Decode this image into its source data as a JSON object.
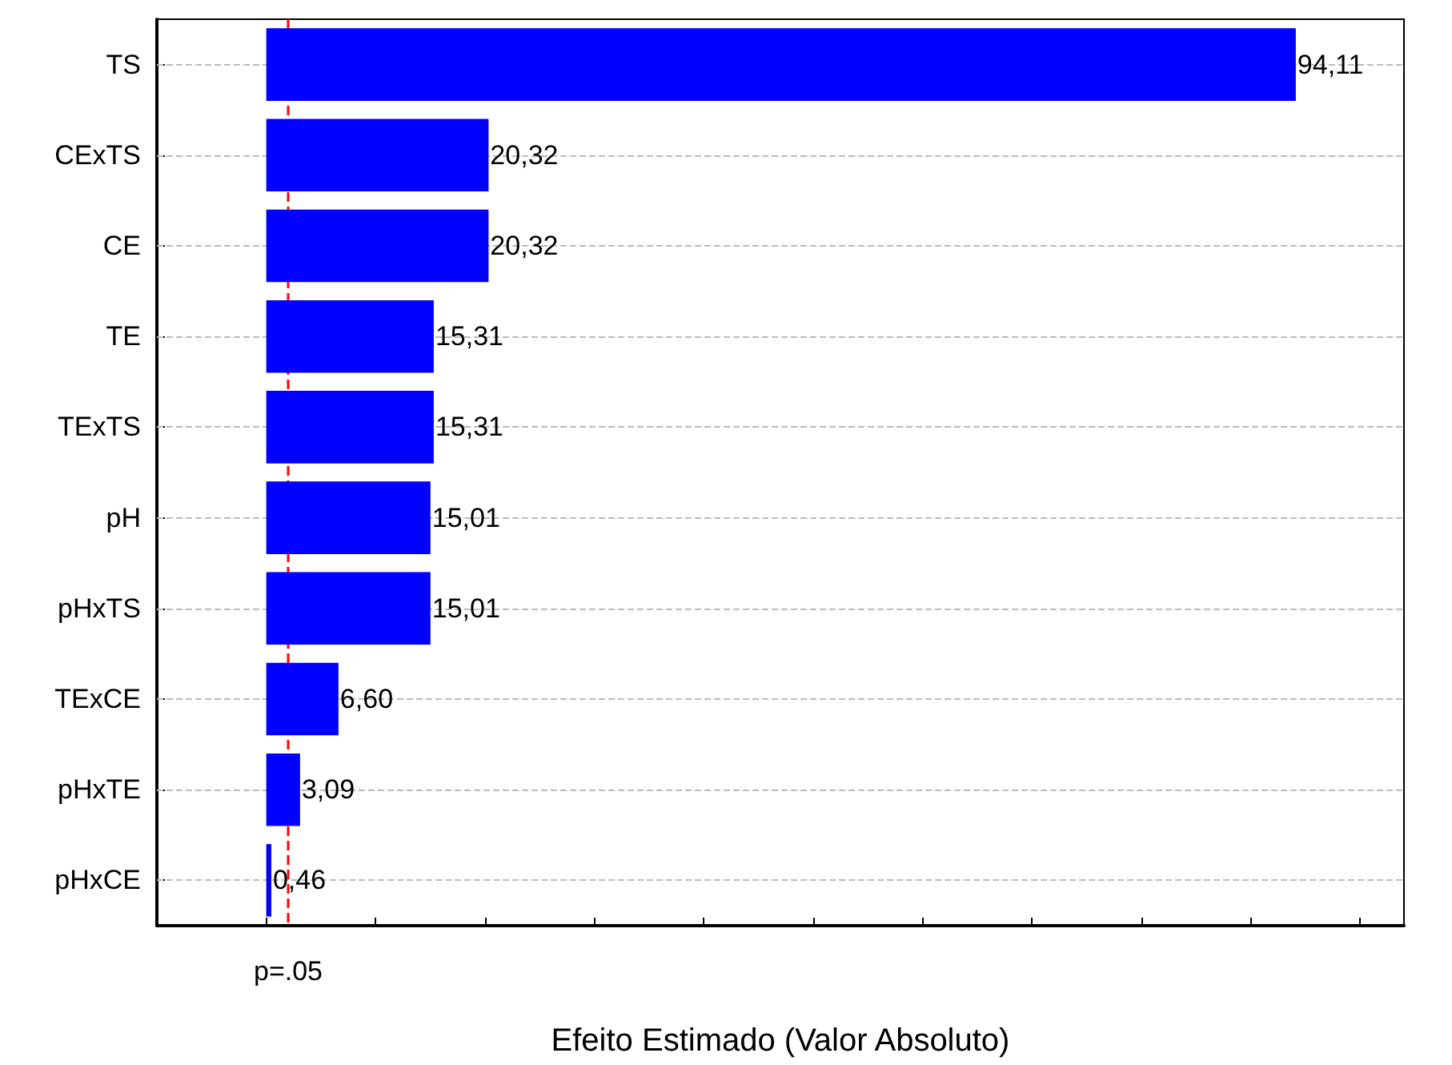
{
  "chart_data": {
    "type": "bar",
    "orientation": "horizontal",
    "xlabel": "Efeito Estimado (Valor Absoluto)",
    "categories": [
      "TS",
      "CExTS",
      "CE",
      "TE",
      "TExTS",
      "pH",
      "pHxTS",
      "TExCE",
      "pHxTE",
      "pHxCE"
    ],
    "values": [
      94.11,
      20.32,
      20.32,
      15.31,
      15.31,
      15.01,
      15.01,
      6.6,
      3.09,
      0.46
    ],
    "value_labels": [
      "94,11",
      "20,32",
      "20,32",
      "15,31",
      "15,31",
      "15,01",
      "15,01",
      "6,60",
      "3,09",
      "0,46"
    ],
    "color": "#0000ff",
    "xlim": [
      -10,
      104
    ],
    "xticks": [
      {
        "value": -10,
        "label": null
      },
      {
        "value": 0,
        "label": null
      },
      {
        "value": 10,
        "label": null
      },
      {
        "value": 20,
        "label": null
      },
      {
        "value": 30,
        "label": null
      },
      {
        "value": 40,
        "label": null
      },
      {
        "value": 50,
        "label": null
      },
      {
        "value": 60,
        "label": null
      },
      {
        "value": 70,
        "label": null
      },
      {
        "value": 80,
        "label": null
      },
      {
        "value": 90,
        "label": null
      },
      {
        "value": 100,
        "label": null
      }
    ],
    "tick_labels": "y",
    "grid": "y",
    "ref_lines": [
      {
        "axis": "x",
        "value": 2,
        "label": "p=.05",
        "color": "#ff0000",
        "line_style": "dashed"
      }
    ]
  }
}
